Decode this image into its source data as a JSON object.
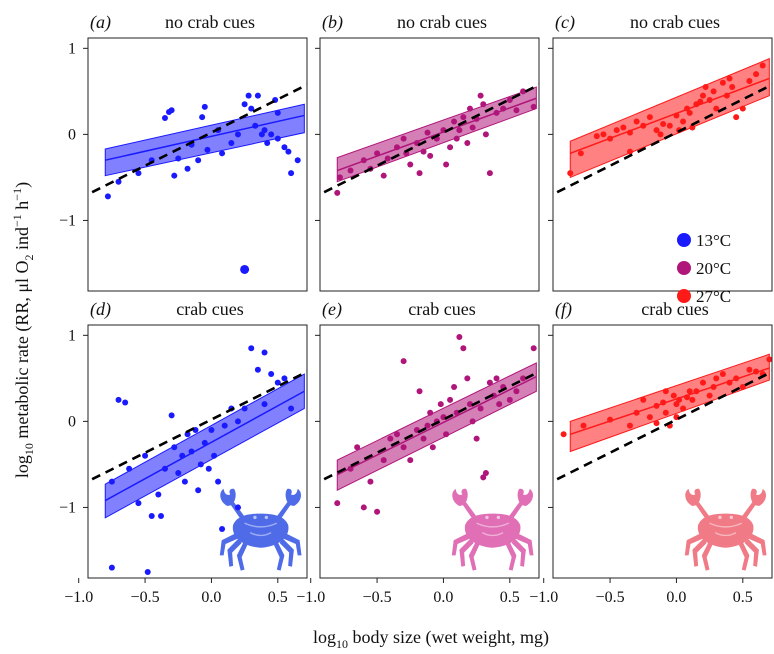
{
  "colors": {
    "blue": "#1a1aff",
    "magenta": "#b0157a",
    "red": "#ff1a1a",
    "crab_blue": "#4f6be8",
    "crab_pink": "#e06fb6",
    "crab_salmon": "#f07a86"
  },
  "axes": {
    "ylabel": "log10 metabolic rate (RR, μl O2 ind−1 h−1)",
    "ylabel_parts": {
      "pre": "log",
      "sub1": "10",
      "mid": " metabolic rate (RR, μl O",
      "sub2": "2",
      "mid2": " ind",
      "sup1": "−1",
      "mid3": " h",
      "sup2": "−1",
      "post": ")"
    },
    "xlabel": "log10 body size (wet weight, mg)",
    "xlabel_parts": {
      "pre": "log",
      "sub": "10",
      "post": " body size (wet weight, mg)"
    },
    "xlim": [
      -0.93,
      0.72
    ],
    "ylim": [
      -1.82,
      1.12
    ],
    "xticks": [
      -1.0,
      -0.5,
      0.0,
      0.5
    ],
    "xtick_labels": [
      "−1.0",
      "−0.5",
      "0.0",
      "0.5"
    ],
    "yticks": [
      1,
      0,
      -1
    ],
    "ytick_labels": [
      "1",
      "0",
      "−1"
    ]
  },
  "legend": [
    {
      "label": "13°C",
      "color": "#1a1aff"
    },
    {
      "label": "20°C",
      "color": "#b0157a"
    },
    {
      "label": "27°C",
      "color": "#ff1a1a"
    }
  ],
  "chart_data": [
    {
      "type": "scatter",
      "panel": "(a)",
      "title": "no crab cues",
      "temperature": "13°C",
      "color": "#1a1aff",
      "crab": false,
      "fit": {
        "x0": -0.8,
        "y0": -0.3,
        "x1": 0.7,
        "y1": 0.22
      },
      "band": {
        "lower0": -0.48,
        "upper0": -0.17,
        "lower1": 0.02,
        "upper1": 0.35
      },
      "reference": {
        "x0": -1.0,
        "y0": -0.75,
        "x1": 0.75,
        "y1": 0.6
      },
      "points": [
        [
          -0.78,
          -0.72
        ],
        [
          -0.7,
          -0.55
        ],
        [
          -0.55,
          -0.45
        ],
        [
          -0.45,
          -0.3
        ],
        [
          -0.32,
          0.26
        ],
        [
          -0.3,
          0.28
        ],
        [
          -0.35,
          0.19
        ],
        [
          -0.28,
          -0.48
        ],
        [
          -0.25,
          -0.28
        ],
        [
          -0.18,
          -0.4
        ],
        [
          -0.15,
          -0.12
        ],
        [
          -0.1,
          -0.3
        ],
        [
          -0.07,
          0.2
        ],
        [
          -0.05,
          0.32
        ],
        [
          -0.03,
          -0.18
        ],
        [
          0.05,
          0.05
        ],
        [
          0.08,
          -0.22
        ],
        [
          0.15,
          -0.1
        ],
        [
          0.2,
          0.0
        ],
        [
          0.25,
          0.35
        ],
        [
          0.28,
          0.45
        ],
        [
          0.3,
          0.3
        ],
        [
          0.33,
          0.1
        ],
        [
          0.35,
          0.45
        ],
        [
          0.38,
          0.0
        ],
        [
          0.4,
          0.05
        ],
        [
          0.42,
          -0.1
        ],
        [
          0.45,
          0.0
        ],
        [
          0.48,
          0.4
        ],
        [
          0.5,
          0.25
        ],
        [
          0.5,
          -0.05
        ],
        [
          0.55,
          -0.15
        ],
        [
          0.58,
          -0.2
        ],
        [
          0.6,
          -0.45
        ],
        [
          0.65,
          -0.3
        ],
        [
          0.25,
          -1.57
        ]
      ],
      "outlier_index": 35
    },
    {
      "type": "scatter",
      "panel": "(b)",
      "title": "no crab cues",
      "temperature": "20°C",
      "color": "#b0157a",
      "crab": false,
      "fit": {
        "x0": -0.8,
        "y0": -0.42,
        "x1": 0.7,
        "y1": 0.42
      },
      "band": {
        "lower0": -0.55,
        "upper0": -0.27,
        "lower1": 0.3,
        "upper1": 0.55
      },
      "reference": {
        "x0": -1.0,
        "y0": -0.75,
        "x1": 0.75,
        "y1": 0.6
      },
      "points": [
        [
          -0.8,
          -0.68
        ],
        [
          -0.78,
          -0.5
        ],
        [
          -0.7,
          -0.42
        ],
        [
          -0.6,
          -0.3
        ],
        [
          -0.55,
          -0.4
        ],
        [
          -0.5,
          -0.22
        ],
        [
          -0.45,
          -0.48
        ],
        [
          -0.42,
          -0.28
        ],
        [
          -0.35,
          -0.15
        ],
        [
          -0.3,
          -0.05
        ],
        [
          -0.28,
          -0.22
        ],
        [
          -0.25,
          -0.35
        ],
        [
          -0.2,
          -0.1
        ],
        [
          -0.18,
          -0.45
        ],
        [
          -0.15,
          -0.2
        ],
        [
          -0.12,
          0.02
        ],
        [
          -0.1,
          -0.25
        ],
        [
          -0.05,
          -0.05
        ],
        [
          0.0,
          0.05
        ],
        [
          0.02,
          -0.35
        ],
        [
          0.05,
          -0.15
        ],
        [
          0.08,
          0.15
        ],
        [
          0.1,
          -0.05
        ],
        [
          0.12,
          0.05
        ],
        [
          0.15,
          0.2
        ],
        [
          0.18,
          -0.1
        ],
        [
          0.2,
          0.3
        ],
        [
          0.22,
          0.08
        ],
        [
          0.25,
          0.18
        ],
        [
          0.28,
          0.45
        ],
        [
          0.3,
          0.35
        ],
        [
          0.32,
          0.0
        ],
        [
          0.35,
          -0.45
        ],
        [
          0.4,
          0.25
        ],
        [
          0.45,
          0.3
        ],
        [
          0.5,
          0.4
        ],
        [
          0.55,
          0.28
        ],
        [
          0.6,
          0.5
        ],
        [
          0.68,
          0.32
        ]
      ]
    },
    {
      "type": "scatter",
      "panel": "(c)",
      "title": "no crab cues",
      "temperature": "27°C",
      "color": "#ff1a1a",
      "crab": false,
      "fit": {
        "x0": -0.8,
        "y0": -0.22,
        "x1": 0.7,
        "y1": 0.65
      },
      "band": {
        "lower0": -0.5,
        "upper0": -0.08,
        "lower1": 0.45,
        "upper1": 0.88
      },
      "reference": {
        "x0": -1.0,
        "y0": -0.75,
        "x1": 0.75,
        "y1": 0.6
      },
      "points": [
        [
          -0.8,
          -0.45
        ],
        [
          -0.72,
          -0.22
        ],
        [
          -0.6,
          -0.02
        ],
        [
          -0.55,
          0.0
        ],
        [
          -0.5,
          -0.05
        ],
        [
          -0.45,
          0.05
        ],
        [
          -0.4,
          0.08
        ],
        [
          -0.35,
          0.02
        ],
        [
          -0.3,
          0.15
        ],
        [
          -0.25,
          0.1
        ],
        [
          -0.2,
          0.2
        ],
        [
          -0.15,
          0.05
        ],
        [
          -0.12,
          0.0
        ],
        [
          -0.1,
          0.12
        ],
        [
          -0.05,
          0.1
        ],
        [
          0.0,
          0.22
        ],
        [
          0.02,
          0.05
        ],
        [
          0.05,
          0.15
        ],
        [
          0.08,
          0.3
        ],
        [
          0.1,
          0.25
        ],
        [
          0.12,
          0.08
        ],
        [
          0.15,
          0.35
        ],
        [
          0.18,
          0.38
        ],
        [
          0.2,
          0.45
        ],
        [
          0.22,
          0.55
        ],
        [
          0.25,
          0.4
        ],
        [
          0.28,
          0.5
        ],
        [
          0.3,
          0.3
        ],
        [
          0.35,
          0.6
        ],
        [
          0.38,
          0.45
        ],
        [
          0.4,
          0.65
        ],
        [
          0.42,
          0.55
        ],
        [
          0.45,
          0.2
        ],
        [
          0.5,
          0.3
        ],
        [
          0.55,
          0.62
        ],
        [
          0.6,
          0.7
        ],
        [
          0.65,
          0.8
        ],
        [
          -0.35,
          -0.2
        ]
      ]
    },
    {
      "type": "scatter",
      "panel": "(d)",
      "title": "crab cues",
      "temperature": "13°C",
      "color": "#1a1aff",
      "crab": true,
      "fit": {
        "x0": -0.8,
        "y0": -0.92,
        "x1": 0.7,
        "y1": 0.35
      },
      "band": {
        "lower0": -1.12,
        "upper0": -0.73,
        "lower1": 0.15,
        "upper1": 0.55
      },
      "reference": {
        "x0": -1.0,
        "y0": -0.75,
        "x1": 0.75,
        "y1": 0.6
      },
      "points": [
        [
          -0.75,
          -1.7
        ],
        [
          -0.75,
          -0.7
        ],
        [
          -0.7,
          0.25
        ],
        [
          -0.65,
          0.22
        ],
        [
          -0.62,
          -0.55
        ],
        [
          -0.55,
          -0.95
        ],
        [
          -0.5,
          -0.4
        ],
        [
          -0.48,
          -1.75
        ],
        [
          -0.45,
          -1.1
        ],
        [
          -0.4,
          -0.85
        ],
        [
          -0.38,
          -1.1
        ],
        [
          -0.35,
          -0.55
        ],
        [
          -0.3,
          0.07
        ],
        [
          -0.28,
          -0.3
        ],
        [
          -0.25,
          -0.6
        ],
        [
          -0.22,
          -0.4
        ],
        [
          -0.2,
          -0.7
        ],
        [
          -0.18,
          -0.15
        ],
        [
          -0.15,
          -0.35
        ],
        [
          -0.12,
          -0.1
        ],
        [
          -0.1,
          -0.8
        ],
        [
          -0.08,
          -0.5
        ],
        [
          -0.05,
          -0.25
        ],
        [
          -0.02,
          -0.55
        ],
        [
          0.0,
          -0.1
        ],
        [
          0.02,
          -0.4
        ],
        [
          0.05,
          -0.7
        ],
        [
          0.08,
          -1.25
        ],
        [
          0.1,
          -0.05
        ],
        [
          0.15,
          0.15
        ],
        [
          0.2,
          0.0
        ],
        [
          0.25,
          0.15
        ],
        [
          0.3,
          0.85
        ],
        [
          0.35,
          0.6
        ],
        [
          0.4,
          0.2
        ],
        [
          0.4,
          0.8
        ],
        [
          0.45,
          0.55
        ],
        [
          0.5,
          0.45
        ],
        [
          0.55,
          0.5
        ],
        [
          0.6,
          0.15
        ],
        [
          0.2,
          -1.0
        ]
      ]
    },
    {
      "type": "scatter",
      "panel": "(e)",
      "title": "crab cues",
      "temperature": "20°C",
      "color": "#b0157a",
      "crab": true,
      "fit": {
        "x0": -0.8,
        "y0": -0.62,
        "x1": 0.7,
        "y1": 0.52
      },
      "band": {
        "lower0": -0.8,
        "upper0": -0.45,
        "lower1": 0.35,
        "upper1": 0.68
      },
      "reference": {
        "x0": -1.0,
        "y0": -0.75,
        "x1": 0.75,
        "y1": 0.6
      },
      "points": [
        [
          -0.8,
          -0.95
        ],
        [
          -0.7,
          -0.55
        ],
        [
          -0.65,
          -0.3
        ],
        [
          -0.6,
          -1.0
        ],
        [
          -0.55,
          -0.7
        ],
        [
          -0.5,
          -1.05
        ],
        [
          -0.45,
          -0.45
        ],
        [
          -0.4,
          -0.2
        ],
        [
          -0.35,
          -0.15
        ],
        [
          -0.3,
          -0.3
        ],
        [
          -0.25,
          -0.45
        ],
        [
          -0.2,
          -0.1
        ],
        [
          -0.18,
          0.35
        ],
        [
          -0.15,
          -0.2
        ],
        [
          -0.12,
          -0.05
        ],
        [
          -0.1,
          0.1
        ],
        [
          -0.08,
          -0.3
        ],
        [
          -0.05,
          0.0
        ],
        [
          -0.02,
          0.2
        ],
        [
          0.0,
          0.05
        ],
        [
          0.02,
          -0.15
        ],
        [
          0.05,
          0.25
        ],
        [
          0.08,
          0.4
        ],
        [
          0.1,
          0.1
        ],
        [
          0.12,
          0.98
        ],
        [
          0.15,
          0.85
        ],
        [
          0.18,
          0.5
        ],
        [
          0.2,
          0.2
        ],
        [
          0.22,
          0.0
        ],
        [
          0.25,
          -0.2
        ],
        [
          0.28,
          0.15
        ],
        [
          0.3,
          -0.65
        ],
        [
          0.32,
          -0.6
        ],
        [
          0.35,
          0.45
        ],
        [
          0.38,
          0.3
        ],
        [
          0.4,
          0.5
        ],
        [
          0.42,
          0.2
        ],
        [
          0.45,
          0.4
        ],
        [
          0.5,
          0.25
        ],
        [
          0.55,
          0.35
        ],
        [
          0.6,
          0.5
        ],
        [
          0.68,
          0.85
        ],
        [
          -0.3,
          0.7
        ]
      ]
    },
    {
      "type": "scatter",
      "panel": "(f)",
      "title": "crab cues",
      "temperature": "27°C",
      "color": "#ff1a1a",
      "crab": true,
      "fit": {
        "x0": -0.8,
        "y0": -0.15,
        "x1": 0.7,
        "y1": 0.62
      },
      "band": {
        "lower0": -0.35,
        "upper0": 0.0,
        "lower1": 0.48,
        "upper1": 0.78
      },
      "reference": {
        "x0": -1.0,
        "y0": -0.75,
        "x1": 0.75,
        "y1": 0.6
      },
      "points": [
        [
          -0.85,
          -0.15
        ],
        [
          -0.7,
          -0.05
        ],
        [
          -0.5,
          0.02
        ],
        [
          -0.35,
          -0.05
        ],
        [
          -0.3,
          0.1
        ],
        [
          -0.25,
          0.25
        ],
        [
          -0.2,
          0.05
        ],
        [
          -0.15,
          0.18
        ],
        [
          -0.1,
          0.22
        ],
        [
          -0.08,
          0.1
        ],
        [
          -0.05,
          -0.05
        ],
        [
          -0.02,
          0.3
        ],
        [
          0.0,
          0.2
        ],
        [
          0.02,
          0.25
        ],
        [
          0.05,
          0.15
        ],
        [
          0.08,
          0.28
        ],
        [
          0.1,
          0.35
        ],
        [
          0.12,
          0.25
        ],
        [
          0.15,
          0.35
        ],
        [
          0.2,
          0.45
        ],
        [
          0.25,
          0.3
        ],
        [
          0.28,
          0.4
        ],
        [
          0.3,
          0.5
        ],
        [
          0.35,
          0.55
        ],
        [
          0.4,
          0.45
        ],
        [
          0.45,
          0.5
        ],
        [
          0.5,
          0.4
        ],
        [
          0.55,
          0.6
        ],
        [
          0.6,
          0.58
        ],
        [
          0.65,
          0.55
        ],
        [
          0.7,
          0.72
        ],
        [
          -0.15,
          -0.02
        ],
        [
          0.0,
          0.05
        ],
        [
          -0.08,
          0.35
        ]
      ]
    }
  ]
}
